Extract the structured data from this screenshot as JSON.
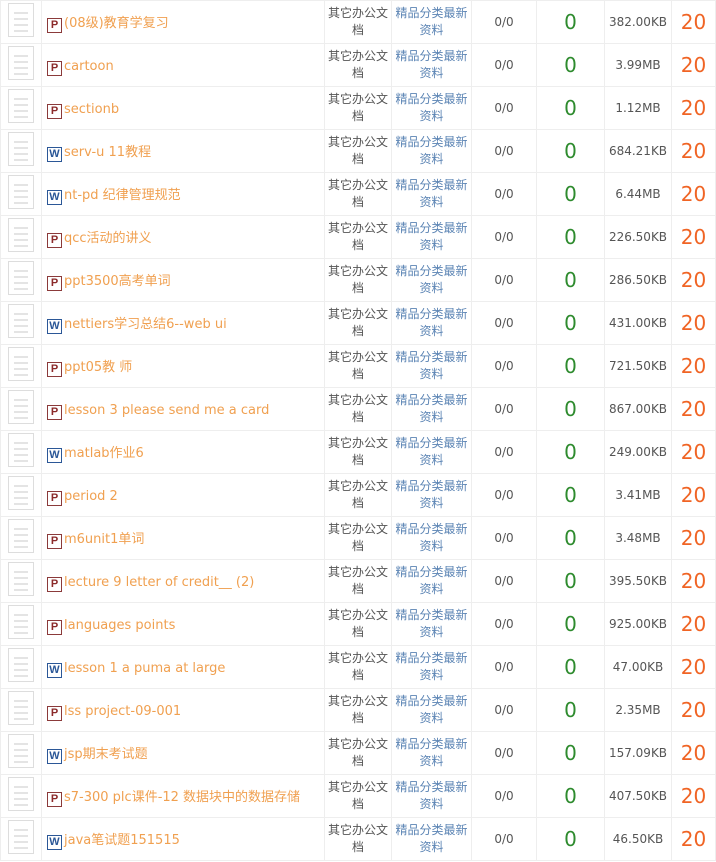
{
  "colors": {
    "title": "#f0a050",
    "downloads": "#2e8b2e",
    "points": "#f06424",
    "subcategory": "#5b84b4"
  },
  "rows": [
    {
      "type": "P",
      "title": "(08级)教育学复习",
      "category": "其它办公文档",
      "sub": "精品分类最新资料",
      "rating": "0/0",
      "downloads": "0",
      "size": "382.00KB",
      "points": "20"
    },
    {
      "type": "P",
      "title": "cartoon",
      "category": "其它办公文档",
      "sub": "精品分类最新资料",
      "rating": "0/0",
      "downloads": "0",
      "size": "3.99MB",
      "points": "20"
    },
    {
      "type": "P",
      "title": "sectionb",
      "category": "其它办公文档",
      "sub": "精品分类最新资料",
      "rating": "0/0",
      "downloads": "0",
      "size": "1.12MB",
      "points": "20"
    },
    {
      "type": "W",
      "title": "serv-u 11教程",
      "category": "其它办公文档",
      "sub": "精品分类最新资料",
      "rating": "0/0",
      "downloads": "0",
      "size": "684.21KB",
      "points": "20"
    },
    {
      "type": "W",
      "title": "nt-pd 纪律管理规范",
      "category": "其它办公文档",
      "sub": "精品分类最新资料",
      "rating": "0/0",
      "downloads": "0",
      "size": "6.44MB",
      "points": "20"
    },
    {
      "type": "P",
      "title": "qcc活动的讲义",
      "category": "其它办公文档",
      "sub": "精品分类最新资料",
      "rating": "0/0",
      "downloads": "0",
      "size": "226.50KB",
      "points": "20"
    },
    {
      "type": "P",
      "title": "ppt3500高考单词",
      "category": "其它办公文档",
      "sub": "精品分类最新资料",
      "rating": "0/0",
      "downloads": "0",
      "size": "286.50KB",
      "points": "20"
    },
    {
      "type": "W",
      "title": "nettiers学习总结6--web ui",
      "category": "其它办公文档",
      "sub": "精品分类最新资料",
      "rating": "0/0",
      "downloads": "0",
      "size": "431.00KB",
      "points": "20"
    },
    {
      "type": "P",
      "title": "ppt05教 师",
      "category": "其它办公文档",
      "sub": "精品分类最新资料",
      "rating": "0/0",
      "downloads": "0",
      "size": "721.50KB",
      "points": "20"
    },
    {
      "type": "P",
      "title": "lesson 3 please send me a card",
      "category": "其它办公文档",
      "sub": "精品分类最新资料",
      "rating": "0/0",
      "downloads": "0",
      "size": "867.00KB",
      "points": "20"
    },
    {
      "type": "W",
      "title": "matlab作业6",
      "category": "其它办公文档",
      "sub": "精品分类最新资料",
      "rating": "0/0",
      "downloads": "0",
      "size": "249.00KB",
      "points": "20"
    },
    {
      "type": "P",
      "title": "period 2",
      "category": "其它办公文档",
      "sub": "精品分类最新资料",
      "rating": "0/0",
      "downloads": "0",
      "size": "3.41MB",
      "points": "20"
    },
    {
      "type": "P",
      "title": "m6unit1单词",
      "category": "其它办公文档",
      "sub": "精品分类最新资料",
      "rating": "0/0",
      "downloads": "0",
      "size": "3.48MB",
      "points": "20"
    },
    {
      "type": "P",
      "title": "lecture 9 letter of credit__ (2)",
      "category": "其它办公文档",
      "sub": "精品分类最新资料",
      "rating": "0/0",
      "downloads": "0",
      "size": "395.50KB",
      "points": "20"
    },
    {
      "type": "P",
      "title": "languages points",
      "category": "其它办公文档",
      "sub": "精品分类最新资料",
      "rating": "0/0",
      "downloads": "0",
      "size": "925.00KB",
      "points": "20"
    },
    {
      "type": "W",
      "title": "lesson 1 a puma at large",
      "category": "其它办公文档",
      "sub": "精品分类最新资料",
      "rating": "0/0",
      "downloads": "0",
      "size": "47.00KB",
      "points": "20"
    },
    {
      "type": "P",
      "title": "lss project-09-001",
      "category": "其它办公文档",
      "sub": "精品分类最新资料",
      "rating": "0/0",
      "downloads": "0",
      "size": "2.35MB",
      "points": "20"
    },
    {
      "type": "W",
      "title": "jsp期末考试题",
      "category": "其它办公文档",
      "sub": "精品分类最新资料",
      "rating": "0/0",
      "downloads": "0",
      "size": "157.09KB",
      "points": "20"
    },
    {
      "type": "P",
      "title": "s7-300 plc课件-12 数据块中的数据存储",
      "category": "其它办公文档",
      "sub": "精品分类最新资料",
      "rating": "0/0",
      "downloads": "0",
      "size": "407.50KB",
      "points": "20"
    },
    {
      "type": "W",
      "title": "java笔试题151515",
      "category": "其它办公文档",
      "sub": "精品分类最新资料",
      "rating": "0/0",
      "downloads": "0",
      "size": "46.50KB",
      "points": "20"
    }
  ]
}
